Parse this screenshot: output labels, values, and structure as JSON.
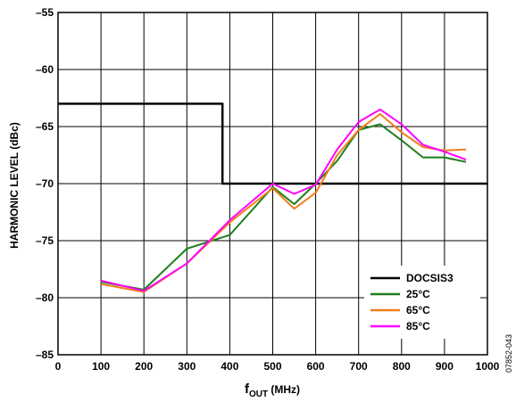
{
  "chart_data": {
    "type": "line",
    "xlabel": {
      "main": "f",
      "sub": "OUT",
      "units": " (MHz)"
    },
    "ylabel": "HARMONIC LEVEL (dBc)",
    "xlim": [
      0,
      1000
    ],
    "ylim": [
      -85,
      -55
    ],
    "xticks": [
      0,
      100,
      200,
      300,
      400,
      500,
      600,
      700,
      800,
      900,
      1000
    ],
    "yticks": [
      -55,
      -60,
      -65,
      -70,
      -75,
      -80,
      -85
    ],
    "xtick_labels": [
      "0",
      "100",
      "200",
      "300",
      "400",
      "500",
      "600",
      "700",
      "800",
      "900",
      "1000"
    ],
    "ytick_labels": [
      "–55",
      "–60",
      "–65",
      "–70",
      "–75",
      "–80",
      "–85"
    ],
    "grid": true,
    "legend_position": "bottom-right",
    "series": [
      {
        "name": "DOCSIS3",
        "color": "#000000",
        "step": true,
        "x": [
          0,
          383,
          383,
          1000
        ],
        "y": [
          -63,
          -63,
          -70,
          -70
        ]
      },
      {
        "name": "25°C",
        "color": "#1e7f1e",
        "x": [
          100,
          200,
          300,
          400,
          500,
          550,
          600,
          650,
          700,
          750,
          800,
          850,
          900,
          950
        ],
        "y": [
          -78.6,
          -79.3,
          -75.7,
          -74.5,
          -70.3,
          -71.8,
          -70.0,
          -68.0,
          -65.3,
          -64.8,
          -66.2,
          -67.7,
          -67.7,
          -68.1
        ]
      },
      {
        "name": "65°C",
        "color": "#f07e1a",
        "x": [
          100,
          200,
          300,
          400,
          500,
          550,
          600,
          650,
          700,
          750,
          800,
          850,
          900,
          950
        ],
        "y": [
          -78.8,
          -79.5,
          -77.0,
          -73.4,
          -70.4,
          -72.2,
          -70.8,
          -67.5,
          -65.3,
          -63.9,
          -65.5,
          -66.8,
          -67.1,
          -67.0
        ]
      },
      {
        "name": "85°C",
        "color": "#ff00ff",
        "x": [
          100,
          200,
          300,
          400,
          500,
          550,
          600,
          650,
          700,
          750,
          800,
          850,
          900,
          950
        ],
        "y": [
          -78.5,
          -79.4,
          -77.0,
          -73.2,
          -70.0,
          -70.9,
          -70.1,
          -67.0,
          -64.6,
          -63.5,
          -64.8,
          -66.6,
          -67.2,
          -67.9
        ]
      }
    ]
  },
  "figure_code": "07852-043"
}
